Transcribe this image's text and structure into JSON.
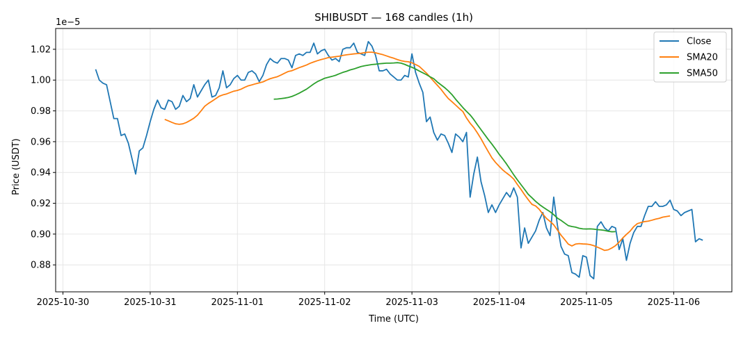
{
  "chart_data": {
    "type": "line",
    "title": "SHIBUSDT — 168 candles (1h)",
    "xlabel": "Time (UTC)",
    "ylabel": "Price (USDT)",
    "y_offset_label": "1e−5",
    "y_scale_exponent": -5,
    "xlim": [
      "2025-10-29 22:00",
      "2025-11-06 16:00"
    ],
    "ylim": [
      0.8625,
      1.0335
    ],
    "x_ticks": [
      "2025-10-30",
      "2025-10-31",
      "2025-11-01",
      "2025-11-02",
      "2025-11-03",
      "2025-11-04",
      "2025-11-05",
      "2025-11-06"
    ],
    "y_ticks": [
      "0.88",
      "0.90",
      "0.92",
      "0.94",
      "0.96",
      "0.98",
      "1.00",
      "1.02"
    ],
    "y_tick_values": [
      0.88,
      0.9,
      0.92,
      0.94,
      0.96,
      0.98,
      1.0,
      1.02
    ],
    "grid": true,
    "legend_position": "top-right",
    "x_start": "2025-10-30 09:00",
    "x_step_hours": 1,
    "series": [
      {
        "name": "Close",
        "color": "#1f77b4",
        "values": [
          1.007,
          1.0,
          0.998,
          0.997,
          0.986,
          0.975,
          0.975,
          0.964,
          0.965,
          0.959,
          0.949,
          0.939,
          0.954,
          0.956,
          0.964,
          0.973,
          0.981,
          0.987,
          0.982,
          0.981,
          0.987,
          0.986,
          0.981,
          0.983,
          0.99,
          0.986,
          0.988,
          0.997,
          0.989,
          0.993,
          0.997,
          1.0,
          0.989,
          0.99,
          0.995,
          1.006,
          0.995,
          0.997,
          1.001,
          1.003,
          1.0,
          1.0,
          1.005,
          1.006,
          1.004,
          0.999,
          1.003,
          1.01,
          1.014,
          1.012,
          1.011,
          1.014,
          1.014,
          1.013,
          1.008,
          1.016,
          1.017,
          1.016,
          1.018,
          1.018,
          1.024,
          1.017,
          1.019,
          1.02,
          1.016,
          1.013,
          1.014,
          1.012,
          1.02,
          1.021,
          1.021,
          1.024,
          1.018,
          1.017,
          1.016,
          1.025,
          1.022,
          1.016,
          1.006,
          1.006,
          1.007,
          1.004,
          1.002,
          1.0,
          1.0,
          1.003,
          1.002,
          1.017,
          1.005,
          0.998,
          0.992,
          0.973,
          0.976,
          0.966,
          0.961,
          0.965,
          0.964,
          0.959,
          0.953,
          0.965,
          0.963,
          0.96,
          0.966,
          0.924,
          0.939,
          0.95,
          0.934,
          0.925,
          0.914,
          0.919,
          0.914,
          0.919,
          0.923,
          0.927,
          0.924,
          0.93,
          0.924,
          0.891,
          0.904,
          0.894,
          0.898,
          0.902,
          0.909,
          0.914,
          0.904,
          0.899,
          0.924,
          0.906,
          0.892,
          0.887,
          0.886,
          0.875,
          0.874,
          0.872,
          0.886,
          0.885,
          0.873,
          0.871,
          0.905,
          0.908,
          0.904,
          0.902,
          0.905,
          0.904,
          0.89,
          0.897,
          0.883,
          0.894,
          0.901,
          0.905,
          0.905,
          0.912,
          0.918,
          0.918,
          0.921,
          0.918,
          0.918,
          0.919,
          0.922,
          0.916,
          0.915,
          0.912,
          0.914,
          0.915,
          0.916,
          0.895,
          0.897,
          0.896
        ]
      },
      {
        "name": "SMA20",
        "color": "#ff7f0e",
        "start_index": 19,
        "values": [
          0.9745,
          0.9735,
          0.9725,
          0.9716,
          0.9713,
          0.9716,
          0.9725,
          0.9738,
          0.9752,
          0.9772,
          0.98,
          0.983,
          0.9848,
          0.9863,
          0.9879,
          0.9895,
          0.9904,
          0.991,
          0.9919,
          0.9928,
          0.9933,
          0.9941,
          0.9953,
          0.9963,
          0.9969,
          0.9976,
          0.9982,
          0.9988,
          0.9999,
          1.0009,
          1.0016,
          1.0022,
          1.0033,
          1.0045,
          1.0056,
          1.0061,
          1.0071,
          1.0081,
          1.0089,
          1.0098,
          1.0109,
          1.0118,
          1.0126,
          1.0133,
          1.0139,
          1.0146,
          1.0149,
          1.0152,
          1.0155,
          1.016,
          1.0164,
          1.0167,
          1.017,
          1.0172,
          1.0174,
          1.0178,
          1.0181,
          1.0181,
          1.0177,
          1.0171,
          1.0165,
          1.0157,
          1.0149,
          1.0142,
          1.0133,
          1.0126,
          1.0121,
          1.0119,
          1.0112,
          1.0101,
          1.0089,
          1.0067,
          1.0045,
          1.0019,
          0.9992,
          0.9966,
          0.994,
          0.9909,
          0.988,
          0.986,
          0.9838,
          0.9816,
          0.9796,
          0.9754,
          0.972,
          0.9692,
          0.9657,
          0.9619,
          0.9576,
          0.9535,
          0.9495,
          0.9465,
          0.944,
          0.9416,
          0.9397,
          0.9379,
          0.9357,
          0.9322,
          0.929,
          0.9255,
          0.9223,
          0.9193,
          0.9183,
          0.9161,
          0.913,
          0.9102,
          0.9082,
          0.906,
          0.9027,
          0.8993,
          0.8965,
          0.8935,
          0.8923,
          0.8935,
          0.8938,
          0.8936,
          0.8935,
          0.8932,
          0.8925,
          0.8915,
          0.8905,
          0.8894,
          0.8898,
          0.891,
          0.8925,
          0.8948,
          0.8975,
          0.8998,
          0.9019,
          0.9048,
          0.9068,
          0.9075,
          0.9081,
          0.9084,
          0.909,
          0.9097,
          0.9102,
          0.911,
          0.9114,
          0.9118
        ]
      },
      {
        "name": "SMA50",
        "color": "#2ca02c",
        "start_index": 49,
        "values": [
          0.9876,
          0.9877,
          0.988,
          0.9883,
          0.9887,
          0.9894,
          0.9904,
          0.9915,
          0.9928,
          0.9941,
          0.9958,
          0.9975,
          0.999,
          1.0001,
          1.0012,
          1.0018,
          1.0024,
          1.0031,
          1.0041,
          1.005,
          1.0057,
          1.0066,
          1.0072,
          1.008,
          1.0088,
          1.0093,
          1.0097,
          1.0101,
          1.0103,
          1.0106,
          1.0108,
          1.011,
          1.011,
          1.0111,
          1.0113,
          1.011,
          1.0102,
          1.0092,
          1.0083,
          1.0072,
          1.0059,
          1.0047,
          1.0035,
          1.0021,
          1.0009,
          0.9987,
          0.9969,
          0.9951,
          0.993,
          0.9906,
          0.9876,
          0.9849,
          0.9822,
          0.9797,
          0.9774,
          0.9744,
          0.971,
          0.9678,
          0.9646,
          0.9614,
          0.9584,
          0.9552,
          0.9518,
          0.9488,
          0.9456,
          0.9421,
          0.9385,
          0.9352,
          0.9321,
          0.929,
          0.9258,
          0.9236,
          0.9213,
          0.9193,
          0.9176,
          0.916,
          0.9145,
          0.9126,
          0.9104,
          0.9089,
          0.9072,
          0.9055,
          0.9049,
          0.9045,
          0.9038,
          0.9034,
          0.9033,
          0.9034,
          0.9032,
          0.9029,
          0.9027,
          0.9024,
          0.9018,
          0.9015,
          0.9016
        ]
      }
    ]
  }
}
